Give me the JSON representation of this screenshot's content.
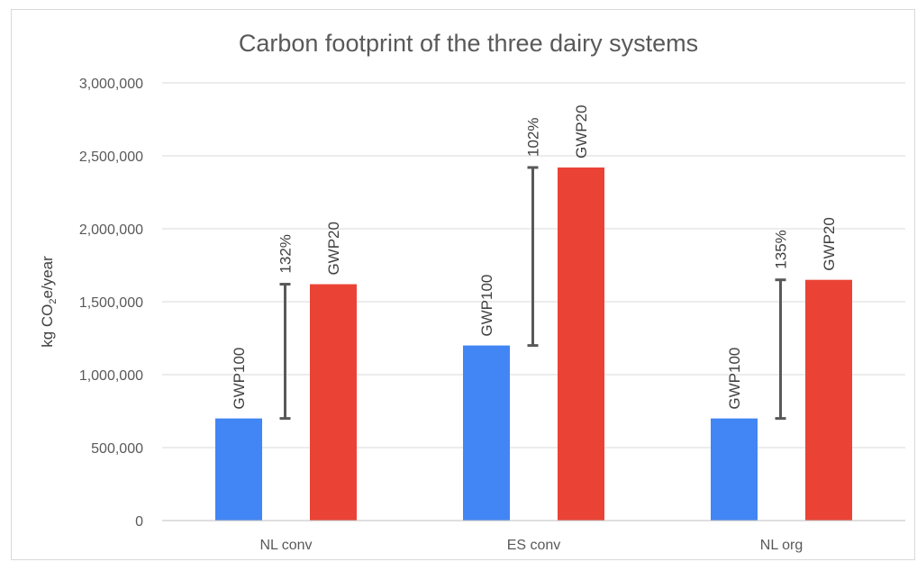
{
  "chart_data": {
    "type": "bar",
    "title": "Carbon footprint of the three dairy systems",
    "ylabel_parts": {
      "pre": "kg CO",
      "sub": "2",
      "post": "e/year"
    },
    "xlabel": "",
    "ylim": [
      0,
      3000000
    ],
    "yticks": [
      0,
      500000,
      1000000,
      1500000,
      2000000,
      2500000,
      3000000
    ],
    "ytick_labels": [
      "0",
      "500,000",
      "1,000,000",
      "1,500,000",
      "2,000,000",
      "2,500,000",
      "3,000,000"
    ],
    "grid": true,
    "legend": "none",
    "categories": [
      "NL conv",
      "ES conv",
      "NL org"
    ],
    "series": [
      {
        "name": "GWP100",
        "color": "#4285f4",
        "values": [
          700000,
          1200000,
          700000
        ],
        "labels": [
          "GWP100",
          "GWP100",
          "GWP100"
        ]
      },
      {
        "name": "GWP20",
        "color": "#ea4335",
        "values": [
          1620000,
          2420000,
          1650000
        ],
        "labels": [
          "GWP20",
          "GWP20",
          "GWP20"
        ]
      }
    ],
    "differences": [
      {
        "label": "132%",
        "from": 700000,
        "to": 1620000
      },
      {
        "label": "102%",
        "from": 1200000,
        "to": 2420000
      },
      {
        "label": "135%",
        "from": 700000,
        "to": 1650000
      }
    ],
    "colors": {
      "gridline": "#d9d9d9",
      "axis": "#bfbfbf",
      "error_bar": "#595959"
    }
  }
}
